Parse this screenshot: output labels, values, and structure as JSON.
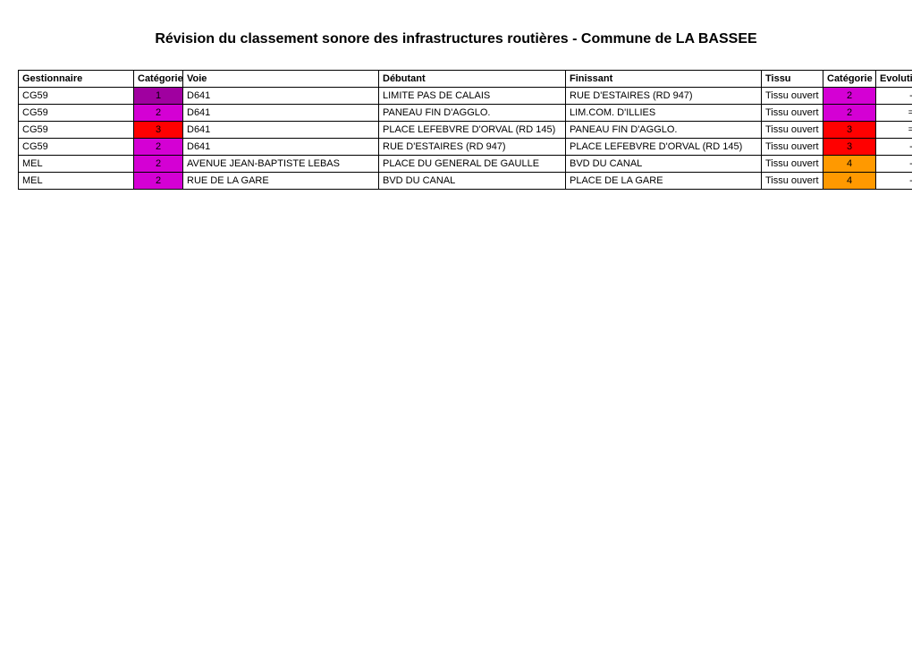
{
  "title": "Révision du classement sonore des infrastructures routières - Commune de LA BASSEE",
  "category_colors": {
    "1": "#a000a0",
    "2": "#d400d4",
    "3": "#ff0000",
    "4": "#ff9900"
  },
  "columns": [
    {
      "key": "gestionnaire",
      "label": "Gestionnaire",
      "class": "col-gest",
      "align": "left"
    },
    {
      "key": "cat_initiale",
      "label": "Catégorie initiale",
      "class": "col-cati",
      "align": "center"
    },
    {
      "key": "voie",
      "label": "Voie",
      "class": "col-voie",
      "align": "left"
    },
    {
      "key": "debutant",
      "label": "Débutant",
      "class": "col-deb",
      "align": "left"
    },
    {
      "key": "finissant",
      "label": "Finissant",
      "class": "col-fin",
      "align": "left"
    },
    {
      "key": "tissu",
      "label": "Tissu",
      "class": "col-tissu",
      "align": "left"
    },
    {
      "key": "cat_nouvelle",
      "label": "Catégorie nouvelle",
      "class": "col-catn",
      "align": "center"
    },
    {
      "key": "evolution",
      "label": "Evolution de la categorie",
      "class": "col-evo",
      "align": "center"
    }
  ],
  "rows": [
    {
      "gestionnaire": "CG59",
      "cat_initiale": "1",
      "voie": "D641",
      "debutant": "LIMITE PAS DE CALAIS",
      "finissant": "RUE D'ESTAIRES (RD 947)",
      "tissu": "Tissu ouvert",
      "cat_nouvelle": "2",
      "evolution": "-"
    },
    {
      "gestionnaire": "CG59",
      "cat_initiale": "2",
      "voie": "D641",
      "debutant": "PANEAU FIN D'AGGLO.",
      "finissant": "LIM.COM. D'ILLIES",
      "tissu": "Tissu ouvert",
      "cat_nouvelle": "2",
      "evolution": "="
    },
    {
      "gestionnaire": "CG59",
      "cat_initiale": "3",
      "voie": "D641",
      "debutant": "PLACE LEFEBVRE D'ORVAL (RD 145)",
      "finissant": "PANEAU FIN D'AGGLO.",
      "tissu": "Tissu ouvert",
      "cat_nouvelle": "3",
      "evolution": "="
    },
    {
      "gestionnaire": "CG59",
      "cat_initiale": "2",
      "voie": "D641",
      "debutant": "RUE D'ESTAIRES (RD 947)",
      "finissant": "PLACE LEFEBVRE D'ORVAL (RD 145)",
      "tissu": "Tissu ouvert",
      "cat_nouvelle": "3",
      "evolution": "-"
    },
    {
      "gestionnaire": "MEL",
      "cat_initiale": "2",
      "voie": "AVENUE JEAN-BAPTISTE LEBAS",
      "debutant": "PLACE DU GENERAL DE GAULLE",
      "finissant": "BVD DU CANAL",
      "tissu": "Tissu ouvert",
      "cat_nouvelle": "4",
      "evolution": "-"
    },
    {
      "gestionnaire": "MEL",
      "cat_initiale": "2",
      "voie": "RUE DE LA GARE",
      "debutant": "BVD DU CANAL",
      "finissant": "PLACE DE LA GARE",
      "tissu": "Tissu ouvert",
      "cat_nouvelle": "4",
      "evolution": "-"
    }
  ]
}
